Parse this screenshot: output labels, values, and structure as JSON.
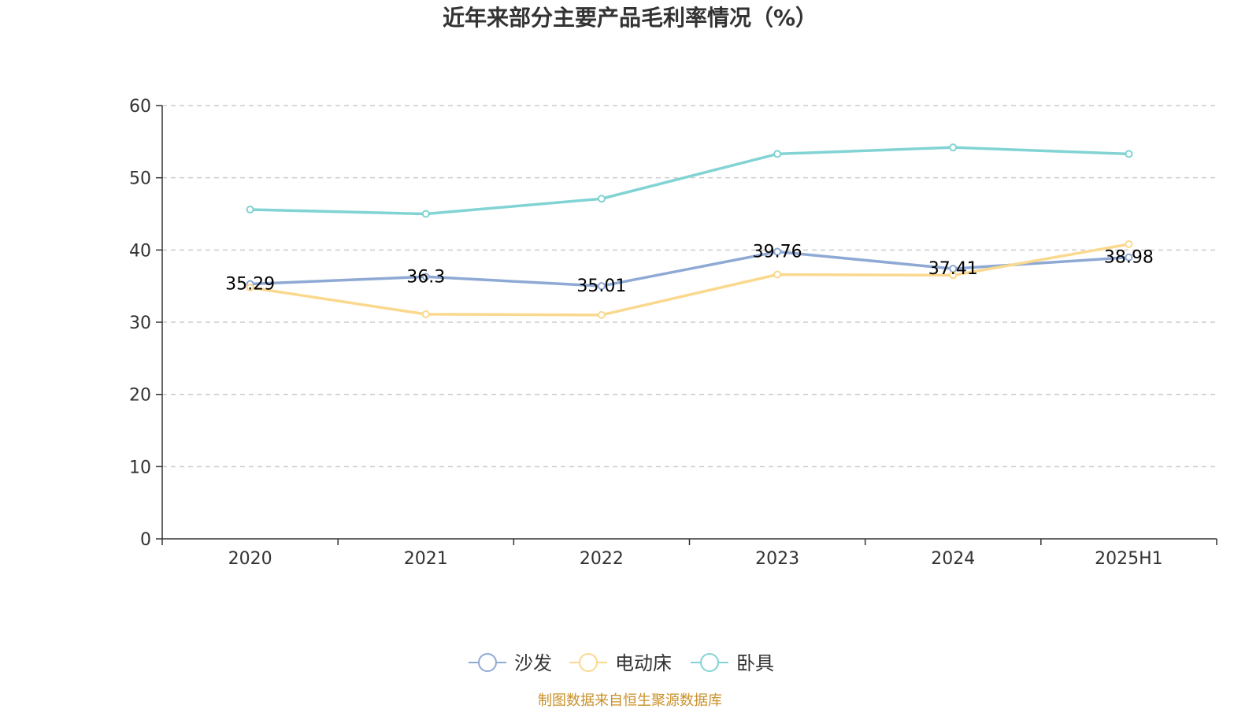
{
  "chart_data": {
    "type": "line",
    "title": "近年来部分主要产品毛利率情况（%）",
    "categories": [
      "2020",
      "2021",
      "2022",
      "2023",
      "2024",
      "2025H1"
    ],
    "ylim": [
      0,
      60
    ],
    "yticks": [
      "0",
      "10",
      "20",
      "30",
      "40",
      "50",
      "60"
    ],
    "grid": true,
    "legend_position": "bottom",
    "series": [
      {
        "name": "沙发",
        "color": "#8fa9d5",
        "values": [
          35.29,
          36.3,
          35.01,
          39.76,
          37.41,
          38.98
        ],
        "labels": [
          "35.29",
          "36.3",
          "35.01",
          "39.76",
          "37.41",
          "38.98"
        ]
      },
      {
        "name": "电动床",
        "color": "#fad98f",
        "values": [
          34.8,
          31.1,
          31.0,
          36.6,
          36.5,
          40.8
        ]
      },
      {
        "name": "卧具",
        "color": "#82d3d3",
        "values": [
          45.6,
          45.0,
          47.1,
          53.3,
          54.2,
          53.3
        ]
      }
    ],
    "source": "制图数据来自恒生聚源数据库"
  }
}
